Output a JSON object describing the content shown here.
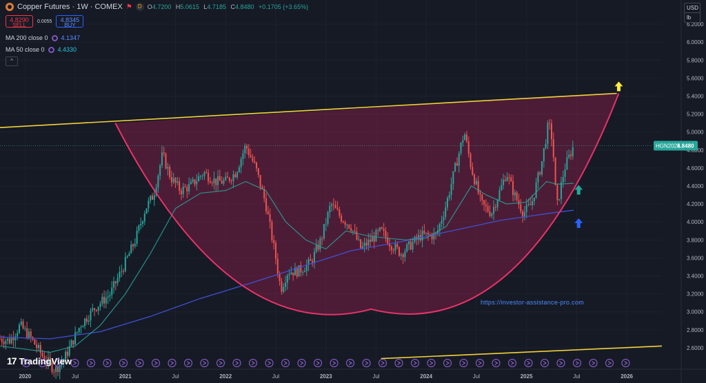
{
  "header": {
    "title": "Copper Futures · 1W · COMEX",
    "d_badge": "D",
    "ohlc": {
      "o_label": "O",
      "o": "4.7200",
      "h_label": "H",
      "h": "5.0615",
      "l_label": "L",
      "l": "4.7185",
      "c_label": "C",
      "c": "4.8480",
      "change": "+0.1705 (+3.65%)"
    }
  },
  "trade": {
    "sell_price": "4.8290",
    "sell_label": "SELL",
    "spread": "0.0055",
    "buy_price": "4.8345",
    "buy_label": "BUY"
  },
  "indicators": [
    {
      "label": "MA 200 close 0",
      "value": "4.1347",
      "color": "#5b8cff"
    },
    {
      "label": "MA 50 close 0",
      "value": "4.4330",
      "color": "#26c6da"
    }
  ],
  "collapse_label": "^",
  "currency": {
    "unit1": "USD",
    "unit2": "lb"
  },
  "price_tag": {
    "symbol": "HGN2025",
    "value": "4.8480"
  },
  "watermark": "https://investor-assistance-pro.com",
  "logo_text": "TradingView",
  "chart_data": {
    "type": "candlestick",
    "ylim": [
      2.5,
      6.3
    ],
    "y_ticks": [
      "2.6000",
      "2.8000",
      "3.0000",
      "3.2000",
      "3.4000",
      "3.6000",
      "3.8000",
      "4.0000",
      "4.2000",
      "4.4000",
      "4.6000",
      "4.8000",
      "5.0000",
      "5.2000",
      "5.4000",
      "5.6000",
      "5.8000",
      "6.0000",
      "6.2000"
    ],
    "x_ticks": [
      "2020",
      "Jul",
      "2021",
      "Jul",
      "2022",
      "Jul",
      "2023",
      "Jul",
      "2024",
      "Jul",
      "2025",
      "Jul",
      "2026"
    ],
    "x_tick_times": [
      2020.0,
      2020.5,
      2021.0,
      2021.5,
      2022.0,
      2022.5,
      2023.0,
      2023.5,
      2024.0,
      2024.5,
      2025.0,
      2025.5,
      2026.0
    ],
    "xlim": [
      2019.75,
      2026.35
    ],
    "price_path": [
      [
        2019.75,
        2.7
      ],
      [
        2019.85,
        2.68
      ],
      [
        2019.95,
        2.85
      ],
      [
        2020.05,
        2.72
      ],
      [
        2020.18,
        2.5
      ],
      [
        2020.3,
        2.35
      ],
      [
        2020.4,
        2.5
      ],
      [
        2020.55,
        2.85
      ],
      [
        2020.7,
        3.05
      ],
      [
        2020.85,
        3.2
      ],
      [
        2021.0,
        3.55
      ],
      [
        2021.1,
        3.8
      ],
      [
        2021.2,
        4.15
      ],
      [
        2021.28,
        4.3
      ],
      [
        2021.37,
        4.75
      ],
      [
        2021.45,
        4.5
      ],
      [
        2021.55,
        4.35
      ],
      [
        2021.65,
        4.4
      ],
      [
        2021.78,
        4.55
      ],
      [
        2021.9,
        4.45
      ],
      [
        2022.0,
        4.45
      ],
      [
        2022.1,
        4.55
      ],
      [
        2022.2,
        4.85
      ],
      [
        2022.3,
        4.6
      ],
      [
        2022.4,
        4.2
      ],
      [
        2022.5,
        3.6
      ],
      [
        2022.55,
        3.25
      ],
      [
        2022.62,
        3.45
      ],
      [
        2022.72,
        3.45
      ],
      [
        2022.85,
        3.55
      ],
      [
        2022.95,
        3.8
      ],
      [
        2023.05,
        4.2
      ],
      [
        2023.15,
        4.05
      ],
      [
        2023.25,
        3.95
      ],
      [
        2023.35,
        3.7
      ],
      [
        2023.45,
        3.8
      ],
      [
        2023.55,
        3.9
      ],
      [
        2023.65,
        3.75
      ],
      [
        2023.75,
        3.65
      ],
      [
        2023.85,
        3.75
      ],
      [
        2023.95,
        3.85
      ],
      [
        2024.05,
        3.85
      ],
      [
        2024.1,
        3.85
      ],
      [
        2024.2,
        4.2
      ],
      [
        2024.3,
        4.65
      ],
      [
        2024.38,
        5.0
      ],
      [
        2024.45,
        4.6
      ],
      [
        2024.55,
        4.2
      ],
      [
        2024.65,
        4.1
      ],
      [
        2024.72,
        4.3
      ],
      [
        2024.8,
        4.55
      ],
      [
        2024.88,
        4.3
      ],
      [
        2024.97,
        4.1
      ],
      [
        2025.05,
        4.2
      ],
      [
        2025.15,
        4.65
      ],
      [
        2025.22,
        5.1
      ],
      [
        2025.26,
        4.9
      ],
      [
        2025.3,
        4.15
      ],
      [
        2025.38,
        4.6
      ],
      [
        2025.47,
        4.85
      ]
    ],
    "ma200_path": [
      [
        2019.75,
        2.72
      ],
      [
        2020.25,
        2.7
      ],
      [
        2020.75,
        2.78
      ],
      [
        2021.25,
        2.95
      ],
      [
        2021.75,
        3.15
      ],
      [
        2022.25,
        3.32
      ],
      [
        2022.75,
        3.5
      ],
      [
        2023.25,
        3.68
      ],
      [
        2023.75,
        3.78
      ],
      [
        2024.25,
        3.9
      ],
      [
        2024.75,
        4.02
      ],
      [
        2025.25,
        4.1
      ],
      [
        2025.47,
        4.13
      ]
    ],
    "ma50_path": [
      [
        2019.75,
        2.62
      ],
      [
        2020.25,
        2.55
      ],
      [
        2020.5,
        2.62
      ],
      [
        2020.75,
        2.85
      ],
      [
        2021.0,
        3.2
      ],
      [
        2021.25,
        3.65
      ],
      [
        2021.5,
        4.15
      ],
      [
        2021.75,
        4.32
      ],
      [
        2022.0,
        4.35
      ],
      [
        2022.2,
        4.45
      ],
      [
        2022.4,
        4.35
      ],
      [
        2022.6,
        4.0
      ],
      [
        2022.8,
        3.8
      ],
      [
        2023.0,
        3.7
      ],
      [
        2023.2,
        3.9
      ],
      [
        2023.4,
        3.85
      ],
      [
        2023.6,
        3.82
      ],
      [
        2023.8,
        3.8
      ],
      [
        2024.0,
        3.82
      ],
      [
        2024.2,
        3.95
      ],
      [
        2024.45,
        4.4
      ],
      [
        2024.6,
        4.3
      ],
      [
        2024.8,
        4.2
      ],
      [
        2025.0,
        4.22
      ],
      [
        2025.2,
        4.45
      ],
      [
        2025.3,
        4.42
      ],
      [
        2025.47,
        4.43
      ]
    ],
    "overlay": {
      "resistance_line": [
        [
          2019.75,
          5.05
        ],
        [
          2025.9,
          5.43
        ]
      ],
      "support_line": [
        [
          2023.55,
          2.48
        ],
        [
          2026.35,
          2.62
        ]
      ],
      "cup_curve": {
        "left": [
          2020.9,
          5.1
        ],
        "bottom": [
          2023.45,
          3.03
        ],
        "right": [
          2025.92,
          5.43
        ]
      },
      "arrows": [
        {
          "time": 2025.92,
          "price": 5.5,
          "direction": "up",
          "color": "#ffeb3b"
        },
        {
          "time": 2025.52,
          "price": 4.35,
          "direction": "up",
          "color": "#26a69a"
        },
        {
          "time": 2025.52,
          "price": 3.98,
          "direction": "up",
          "color": "#2962ff"
        }
      ]
    },
    "colors": {
      "up": "#26a69a",
      "down": "#ef5350",
      "ma200": "#3f51d4",
      "ma50": "#26a69a",
      "resistance": "#f3d23b",
      "cup_stroke": "#e8326a",
      "cup_fill": "#7a1f45",
      "grid": "#1e222d"
    },
    "grid": true
  }
}
